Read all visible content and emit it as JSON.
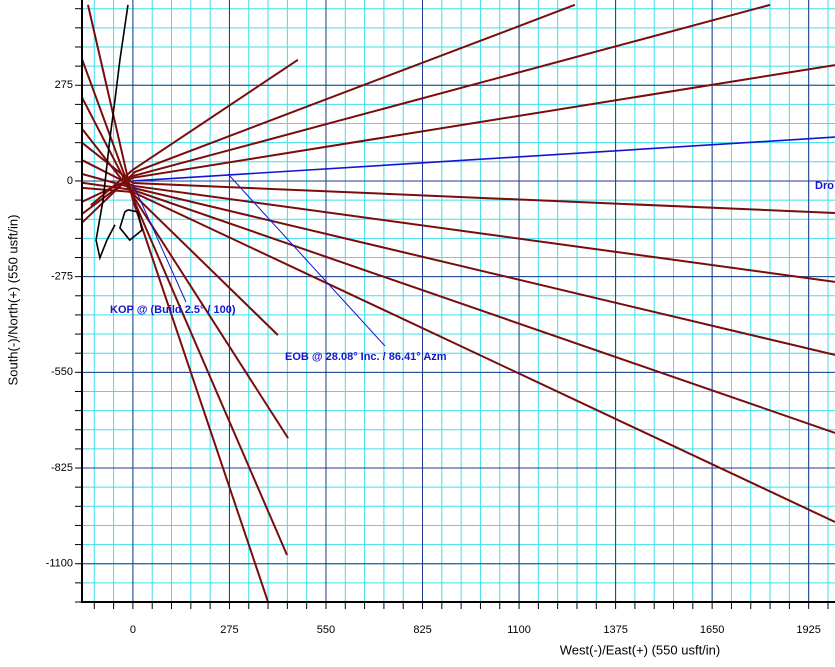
{
  "chart_data": {
    "type": "line",
    "xlabel": "West(-)/East(+) (550 usft/in)",
    "ylabel": "South(-)/North(+) (550 usft/in)",
    "xlim": [
      -145,
      2000
    ],
    "ylim": [
      -1210,
      520
    ],
    "xticks": [
      0,
      275,
      550,
      825,
      1100,
      1375,
      1650,
      1925
    ],
    "yticks": [
      -1100,
      -825,
      -550,
      -275,
      0,
      275
    ],
    "minor_grid_step": 55,
    "grid": true,
    "annotations": [
      "KOP @ (Build 2.5° / 100)",
      "EOB @ 28.08° Inc. / 86.41° Azm",
      "Dro"
    ],
    "series": [
      {
        "color": "#7a0c0c",
        "x": [
          -145,
          6,
          1259
        ],
        "values": [
          -120,
          26,
          506
        ]
      },
      {
        "color": "#7a0c0c",
        "x": [
          -145,
          0,
          1815
        ],
        "values": [
          -95,
          14,
          506
        ]
      },
      {
        "color": "#7a0c0c",
        "x": [
          -145,
          0,
          2000
        ],
        "values": [
          -60,
          9,
          333
        ]
      },
      {
        "color": "#7a0c0c",
        "x": [
          -120,
          0,
          470
        ],
        "values": [
          -70,
          32,
          348
        ]
      },
      {
        "color": "#7a0c0c",
        "x": [
          -145,
          0,
          2000
        ],
        "values": [
          110,
          -6,
          -92
        ]
      },
      {
        "color": "#7a0c0c",
        "x": [
          -145,
          0,
          2000
        ],
        "values": [
          60,
          -14,
          -290
        ]
      },
      {
        "color": "#7a0c0c",
        "x": [
          -145,
          0,
          2000
        ],
        "values": [
          20,
          -20,
          -500
        ]
      },
      {
        "color": "#7a0c0c",
        "x": [
          -145,
          0,
          2000
        ],
        "values": [
          -5,
          -26,
          -724
        ]
      },
      {
        "color": "#7a0c0c",
        "x": [
          -145,
          0,
          2000
        ],
        "values": [
          -20,
          -32,
          -980
        ]
      },
      {
        "color": "#7a0c0c",
        "x": [
          -145,
          0,
          413
        ],
        "values": [
          150,
          -37,
          -443
        ]
      },
      {
        "color": "#7a0c0c",
        "x": [
          -145,
          0,
          442
        ],
        "values": [
          240,
          -43,
          -739
        ]
      },
      {
        "color": "#7a0c0c",
        "x": [
          -145,
          0,
          439
        ],
        "values": [
          350,
          -49,
          -1075
        ]
      },
      {
        "color": "#7a0c0c",
        "x": [
          -128,
          0,
          385
        ],
        "values": [
          506,
          -55,
          -1210
        ]
      },
      {
        "color": "#1515d0",
        "x": [
          0,
          2000
        ],
        "values": [
          0,
          126
        ]
      },
      {
        "color": "#000000",
        "x": [
          -14,
          -37,
          -51,
          -66,
          -85,
          -105,
          -94,
          -74,
          -51
        ],
        "values": [
          506,
          348,
          233,
          118,
          -55,
          -170,
          -221,
          -170,
          -126
        ]
      },
      {
        "color": "#000000",
        "x": [
          -14,
          14,
          26,
          -9,
          -37,
          -23,
          -14
        ],
        "values": [
          -83,
          -89,
          -141,
          -170,
          -135,
          -89,
          -83
        ]
      }
    ]
  }
}
